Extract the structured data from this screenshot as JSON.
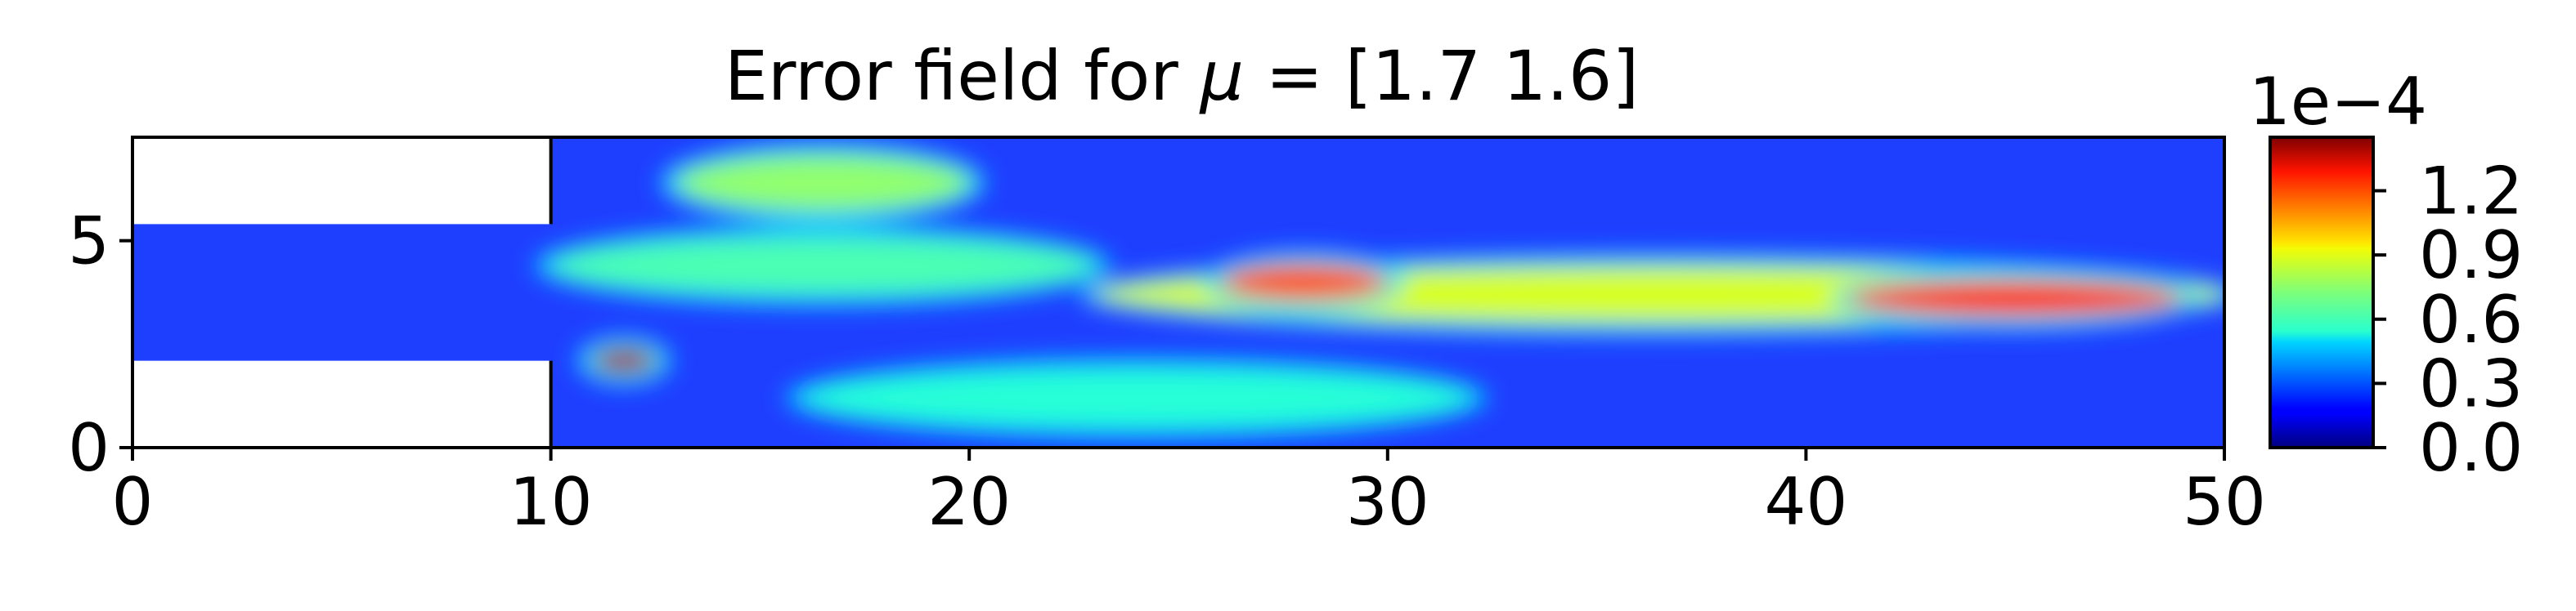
{
  "chart_data": {
    "type": "heatmap",
    "title_prefix": "Error field for ",
    "title_symbol": "μ",
    "title_suffix": " = [1.7 1.6]",
    "xlabel": "",
    "ylabel": "",
    "xlim": [
      0,
      50
    ],
    "ylim": [
      0,
      7.5
    ],
    "x_ticks": [
      0,
      10,
      20,
      30,
      40,
      50
    ],
    "x_tick_labels": [
      "0",
      "10",
      "20",
      "30",
      "40",
      "50"
    ],
    "y_ticks": [
      0,
      5
    ],
    "y_tick_labels": [
      "0",
      "5"
    ],
    "domain": {
      "description": "backward-facing step channel",
      "inlet_x": [
        0,
        10
      ],
      "inlet_y": [
        2.1,
        5.4
      ],
      "main_x": [
        10,
        50
      ],
      "main_y": [
        0,
        7.5
      ]
    },
    "colormap": "jet",
    "colorbar": {
      "min": 0.0,
      "max": 0.000145,
      "ticks": [
        0.0,
        0.3,
        0.6,
        0.9,
        1.2
      ],
      "tick_labels": [
        "0.0",
        "0.3",
        "0.6",
        "0.9",
        "1.2"
      ],
      "multiplier_label": "1e−4"
    },
    "error_features": [
      {
        "x": [
          13,
          20
        ],
        "y": 6.4,
        "peak": 0.75
      },
      {
        "x": [
          10,
          23
        ],
        "y": 4.4,
        "peak": 0.65
      },
      {
        "x": [
          23,
          50
        ],
        "y": 3.7,
        "peak": 0.85
      },
      {
        "x": [
          11,
          12.5
        ],
        "y": 2.1,
        "peak": 1.4
      },
      {
        "x": [
          16,
          32
        ],
        "y": 1.2,
        "peak": 0.6
      },
      {
        "x": [
          26,
          30
        ],
        "y": 4.0,
        "peak": 1.15
      },
      {
        "x": [
          41,
          49
        ],
        "y": 3.6,
        "peak": 1.2
      }
    ]
  }
}
